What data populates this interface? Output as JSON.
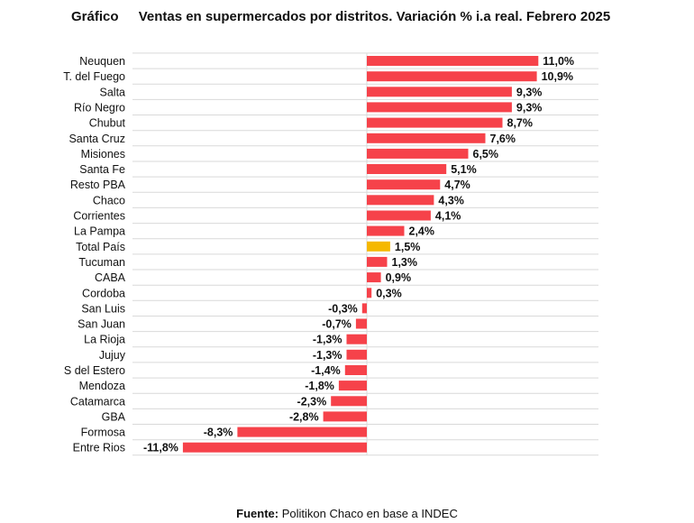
{
  "header": {
    "label": "Gráfico",
    "title": "Ventas en supermercados por distritos. Variación % i.a real. Febrero 2025"
  },
  "source": {
    "label": "Fuente:",
    "text": "Politikon Chaco en base a INDEC"
  },
  "colors": {
    "bar": "#f6424a",
    "highlight": "#f5b800",
    "grid": "#d9d9d9",
    "text": "#111111"
  },
  "chart_data": {
    "type": "bar",
    "orientation": "horizontal",
    "title": "Ventas en supermercados por distritos. Variación % i.a real. Febrero 2025",
    "categories": [
      "Neuquen",
      "T. del Fuego",
      "Salta",
      "Río Negro",
      "Chubut",
      "Santa Cruz",
      "Misiones",
      "Santa Fe",
      "Resto PBA",
      "Chaco",
      "Corrientes",
      "La Pampa",
      "Total País",
      "Tucuman",
      "CABA",
      "Cordoba",
      "San Luis",
      "San Juan",
      "La Rioja",
      "Jujuy",
      "S del Estero",
      "Mendoza",
      "Catamarca",
      "GBA",
      "Formosa",
      "Entre Rios"
    ],
    "values": [
      11.0,
      10.9,
      9.3,
      9.3,
      8.7,
      7.6,
      6.5,
      5.1,
      4.7,
      4.3,
      4.1,
      2.4,
      1.5,
      1.3,
      0.9,
      0.3,
      -0.3,
      -0.7,
      -1.3,
      -1.3,
      -1.4,
      -1.8,
      -2.3,
      -2.8,
      -8.3,
      -11.8
    ],
    "value_labels": [
      "11,0%",
      "10,9%",
      "9,3%",
      "9,3%",
      "8,7%",
      "7,6%",
      "6,5%",
      "5,1%",
      "4,7%",
      "4,3%",
      "4,1%",
      "2,4%",
      "1,5%",
      "1,3%",
      "0,9%",
      "0,3%",
      "-0,3%",
      "-0,7%",
      "-1,3%",
      "-1,3%",
      "-1,4%",
      "-1,8%",
      "-2,3%",
      "-2,8%",
      "-8,3%",
      "-11,8%"
    ],
    "highlight_category": "Total País",
    "xlim": [
      -12,
      12
    ],
    "grid": true
  }
}
